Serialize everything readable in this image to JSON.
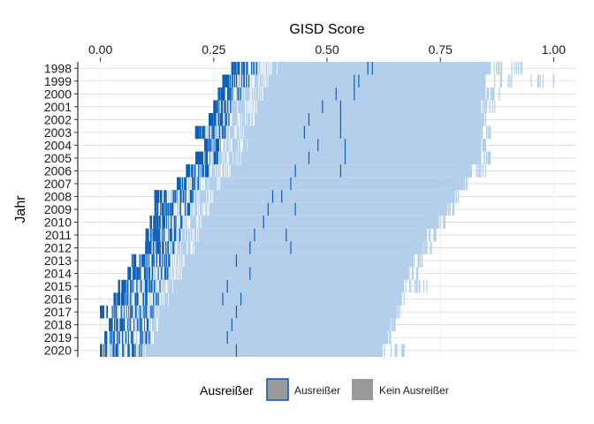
{
  "chart_data": {
    "type": "scatter",
    "title": "",
    "xlabel": "GISD Score",
    "ylabel": "Jahr",
    "xlim": [
      -0.05,
      1.05
    ],
    "x_ticks": [
      0.0,
      0.25,
      0.5,
      0.75,
      1.0
    ],
    "x_tick_labels": [
      "0.00",
      "0.25",
      "0.50",
      "0.75",
      "1.00"
    ],
    "x_axis_position": "top",
    "categories": [
      "1998",
      "1999",
      "2000",
      "2001",
      "2002",
      "2003",
      "2004",
      "2005",
      "2006",
      "2007",
      "2008",
      "2009",
      "2010",
      "2011",
      "2012",
      "2013",
      "2014",
      "2015",
      "2016",
      "2017",
      "2018",
      "2019",
      "2020"
    ],
    "grid": true,
    "legend": {
      "title": "Ausreißer",
      "placement": "bottom",
      "entries": [
        "Ausreißer",
        "Kein Ausreißer"
      ]
    },
    "series": [
      {
        "name": "Ausreißer",
        "color": "#0d5fb8",
        "min": [
          0.29,
          0.27,
          0.26,
          0.25,
          0.24,
          0.21,
          0.23,
          0.21,
          0.19,
          0.17,
          0.12,
          0.12,
          0.11,
          0.1,
          0.1,
          0.07,
          0.06,
          0.04,
          0.03,
          0.0,
          0.02,
          0.01,
          0.0
        ],
        "max": [
          0.35,
          0.33,
          0.31,
          0.29,
          0.29,
          0.28,
          0.27,
          0.26,
          0.24,
          0.23,
          0.21,
          0.2,
          0.19,
          0.18,
          0.17,
          0.16,
          0.15,
          0.14,
          0.13,
          0.12,
          0.11,
          0.11,
          0.1
        ],
        "high_marks": [
          [
            0.59,
            0.6
          ],
          [
            0.57,
            0.56
          ],
          [
            0.52,
            0.56
          ],
          [
            0.49,
            0.53
          ],
          [
            0.46,
            0.53
          ],
          [
            0.45,
            0.53
          ],
          [
            0.48,
            0.54
          ],
          [
            0.46,
            0.54
          ],
          [
            0.43,
            0.53
          ],
          [
            0.42
          ],
          [
            0.4,
            0.38
          ],
          [
            0.37,
            0.43
          ],
          [
            0.36
          ],
          [
            0.34,
            0.41
          ],
          [
            0.33,
            0.42
          ],
          [
            0.3
          ],
          [
            0.33
          ],
          [
            0.28
          ],
          [
            0.27,
            0.31
          ],
          [
            0.3
          ],
          [
            0.29
          ],
          [
            0.28
          ],
          [
            0.3
          ]
        ]
      },
      {
        "name": "Kein Ausreißer",
        "color": "#b3cfeb",
        "min": [
          0.29,
          0.27,
          0.26,
          0.25,
          0.24,
          0.22,
          0.23,
          0.21,
          0.19,
          0.17,
          0.15,
          0.14,
          0.13,
          0.12,
          0.11,
          0.09,
          0.08,
          0.06,
          0.05,
          0.03,
          0.03,
          0.02,
          0.01
        ],
        "max": [
          0.86,
          0.85,
          0.85,
          0.84,
          0.84,
          0.84,
          0.84,
          0.84,
          0.82,
          0.8,
          0.78,
          0.76,
          0.74,
          0.72,
          0.71,
          0.69,
          0.68,
          0.67,
          0.66,
          0.65,
          0.64,
          0.63,
          0.62
        ],
        "upper_tail": [
          0.93,
          1.0,
          0.88,
          0.87,
          0.85,
          0.86,
          0.85,
          0.86,
          0.85,
          0.81,
          0.79,
          0.78,
          0.76,
          0.74,
          0.73,
          0.71,
          0.7,
          0.72,
          0.67,
          0.66,
          0.65,
          0.64,
          0.67
        ]
      }
    ]
  }
}
